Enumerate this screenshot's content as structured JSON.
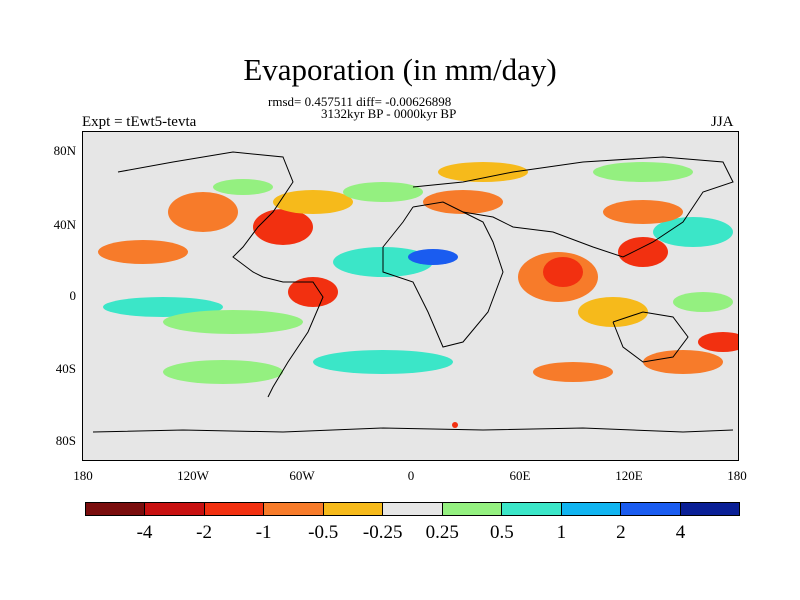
{
  "title": "Evaporation (in mm/day)",
  "stats_line": "rmsd= 0.457511 diff= -0.00626898",
  "period_line": "3132kyr BP - 0000kyr BP",
  "left_label": "Expt = tEwt5-tevta",
  "right_label": "JJA",
  "lat_ticks": [
    "80N",
    "40N",
    "0",
    "40S",
    "80S"
  ],
  "lon_ticks": [
    "180",
    "120W",
    "60W",
    "0",
    "60E",
    "120E",
    "180"
  ],
  "colorbar": {
    "colors": [
      "#7a0d0d",
      "#c81010",
      "#f23010",
      "#f77b2a",
      "#f6ba1b",
      "#e6e6e6",
      "#94f080",
      "#3be6c8",
      "#10b4f0",
      "#1a5cf0",
      "#0a1f96"
    ],
    "labels": [
      "-4",
      "-2",
      "-1",
      "-0.5",
      "-0.25",
      "0.25",
      "0.5",
      "1",
      "2",
      "4"
    ]
  }
}
